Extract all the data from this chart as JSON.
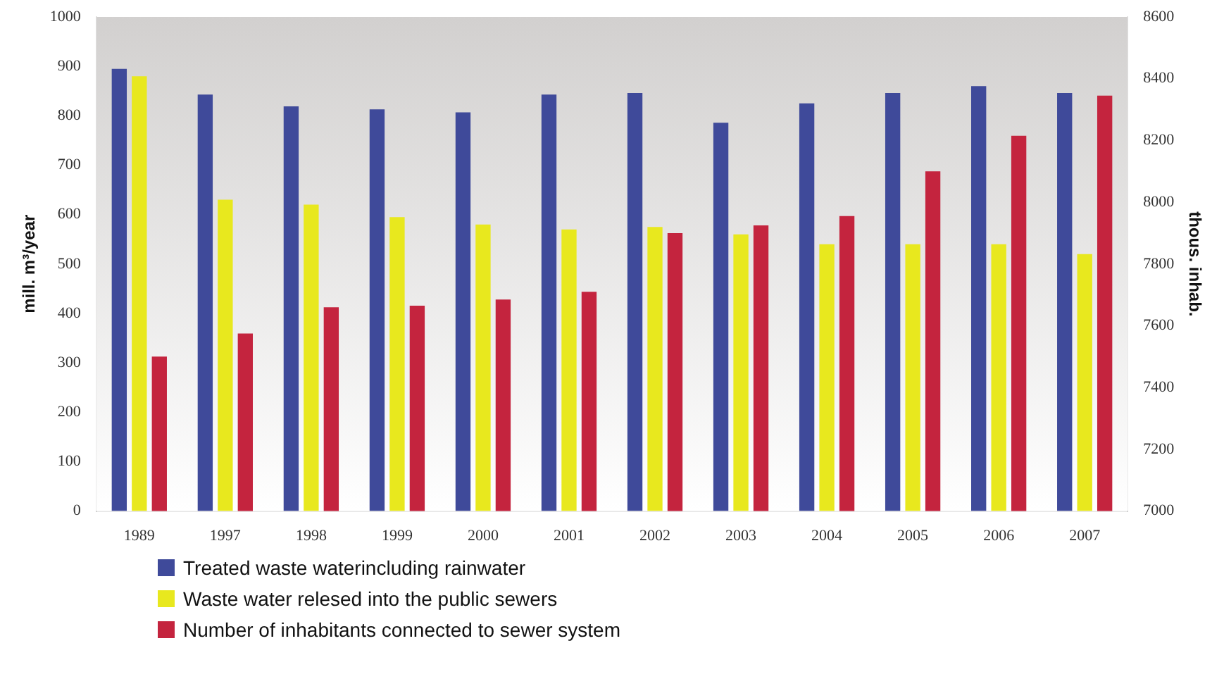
{
  "chart_data": {
    "type": "bar",
    "ylabel": "mill. m³/year",
    "y2label": "thous. inhab.",
    "categories": [
      "1989",
      "1997",
      "1998",
      "1999",
      "2000",
      "2001",
      "2002",
      "2003",
      "2004",
      "2005",
      "2006",
      "2007"
    ],
    "series": [
      {
        "name": "Treated waste waterincluding rainwater",
        "color": "#3f4a9a",
        "values": [
          895,
          843,
          819,
          813,
          807,
          843,
          846,
          786,
          825,
          846,
          860,
          846
        ]
      },
      {
        "name": "Waste water relesed into the public sewers",
        "color": "#e8e81e",
        "values": [
          880,
          630,
          620,
          595,
          580,
          570,
          575,
          560,
          540,
          540,
          540,
          520
        ]
      },
      {
        "name": "Number of inhabitants connected to sewer system",
        "color": "#c4243e",
        "axis": "y2",
        "values": [
          7500,
          7575,
          7660,
          7665,
          7685,
          7710,
          7900,
          7925,
          7955,
          8100,
          8215,
          8345
        ]
      }
    ],
    "ylim": [
      0,
      1000
    ],
    "yticks": [
      0,
      100,
      200,
      300,
      400,
      500,
      600,
      700,
      800,
      900,
      1000
    ],
    "y2lim": [
      7000,
      8600
    ],
    "y2ticks": [
      7000,
      7200,
      7400,
      7600,
      7800,
      8000,
      8200,
      8400,
      8600
    ],
    "grid": false,
    "legend": "bottom"
  }
}
